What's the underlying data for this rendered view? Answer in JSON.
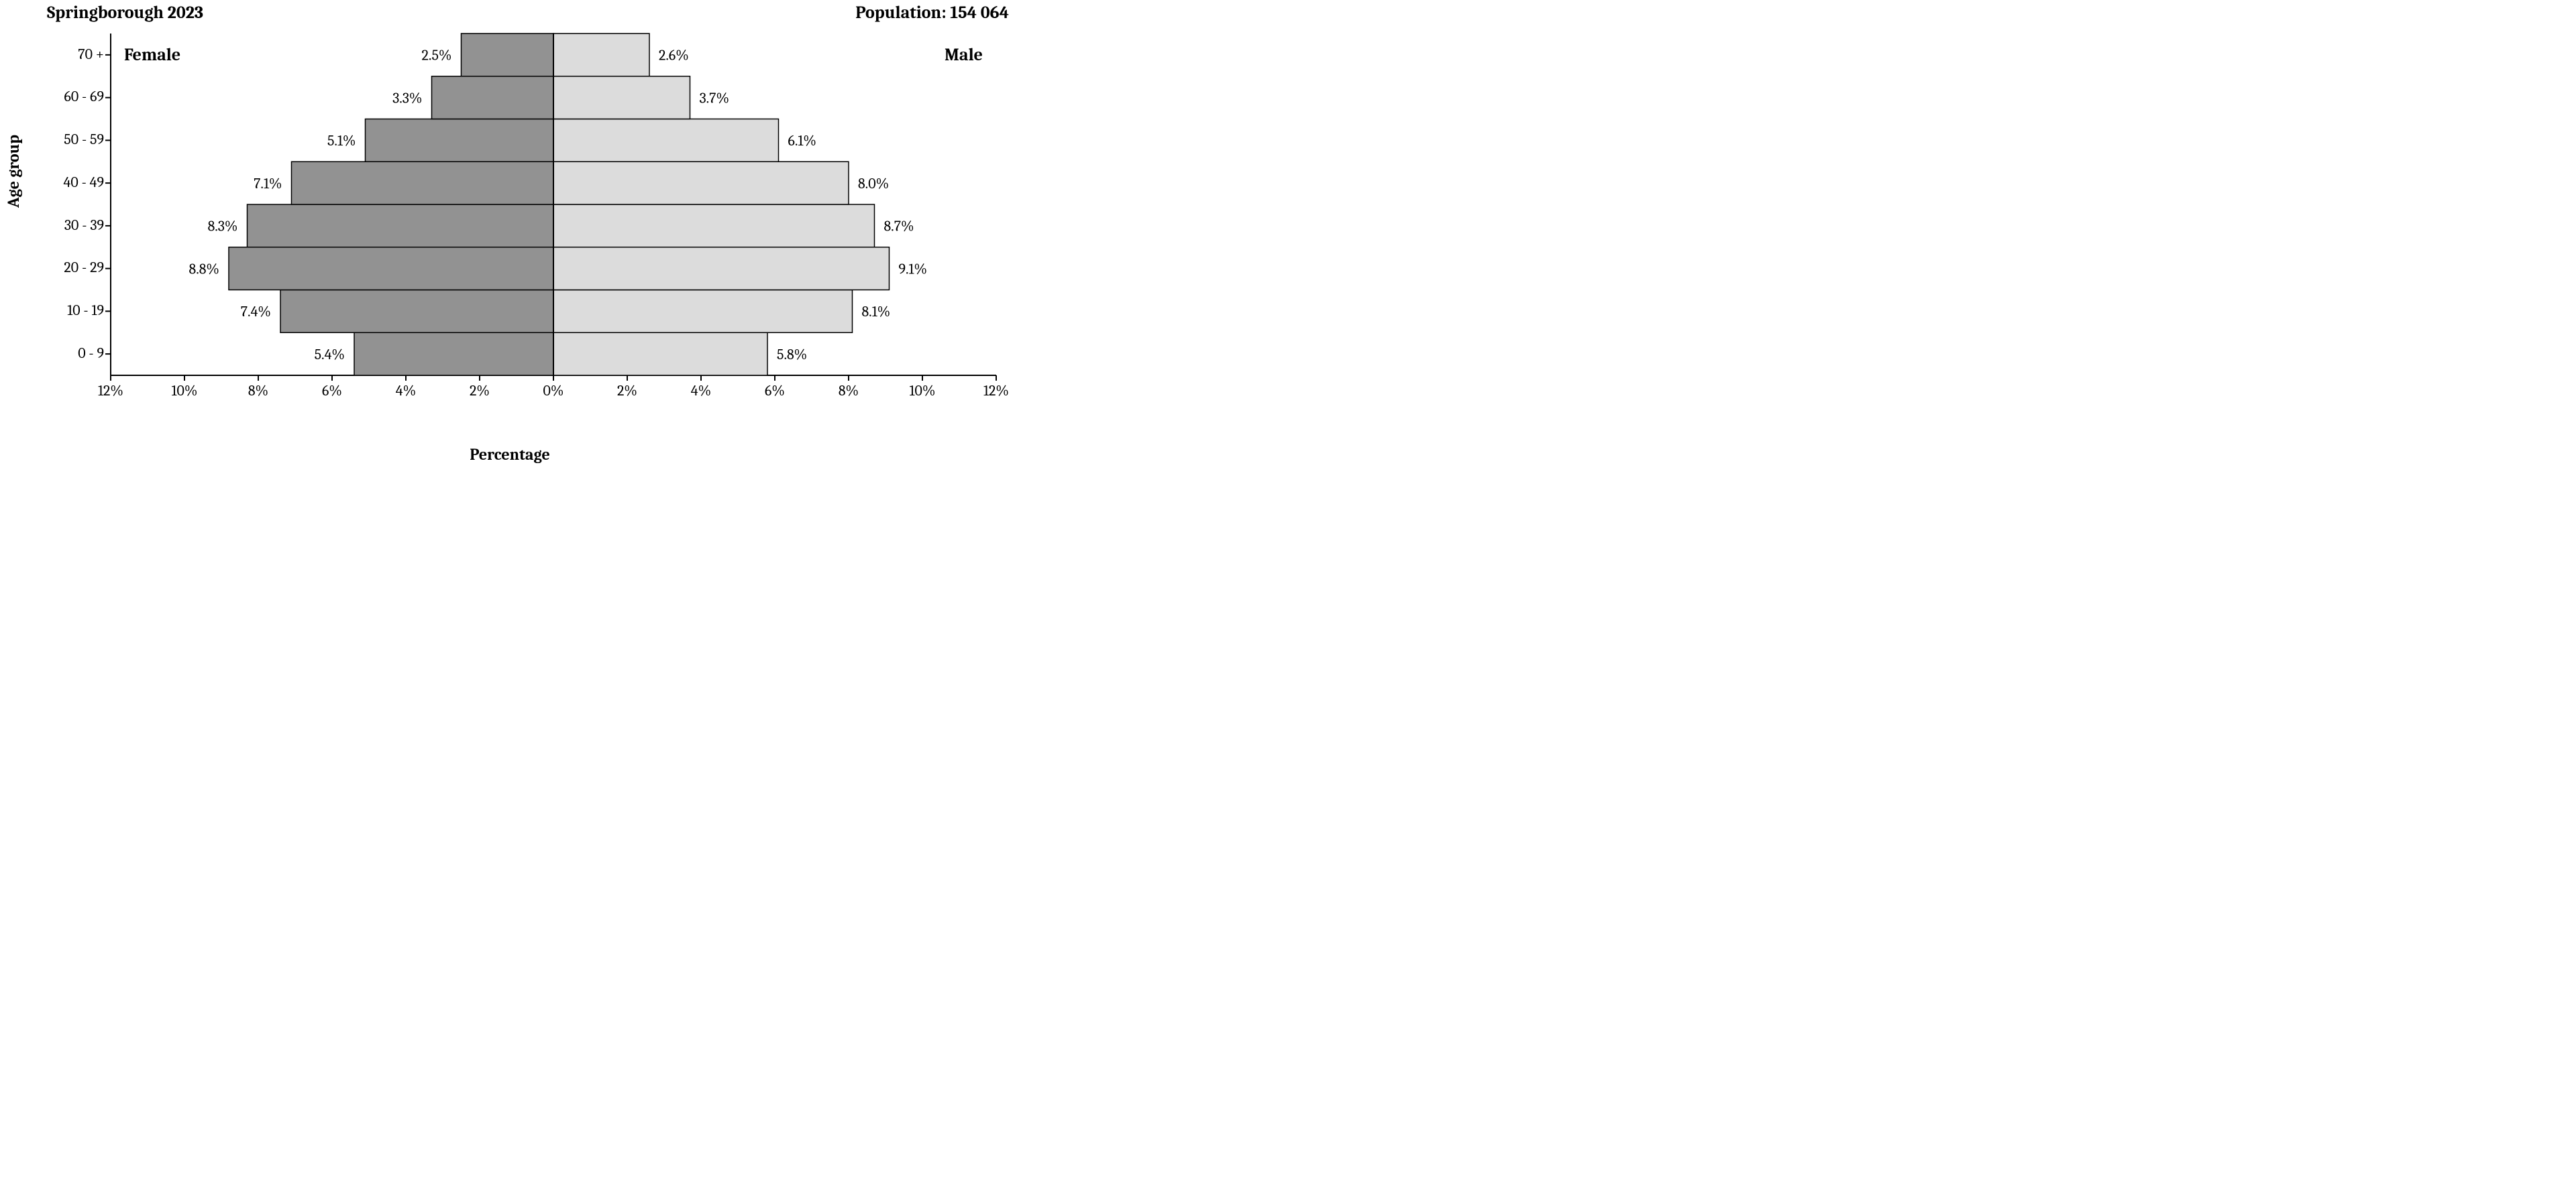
{
  "header": {
    "left": "Springborough 2023",
    "right": "Population: 154 064"
  },
  "axes": {
    "y_title": "Age group",
    "x_title": "Percentage"
  },
  "side_labels": {
    "female": "Female",
    "male": "Male"
  },
  "chart": {
    "type": "population-pyramid",
    "background_color": "#ffffff",
    "axis_color": "#000000",
    "axis_width": 2,
    "bar_border": "#000000",
    "bar_border_w": 1.5,
    "female_fill": "#929292",
    "male_fill": "#dcdcdc",
    "label_color": "#000000",
    "label_fontsize": 22,
    "tick_fontsize": 22,
    "age_fontsize": 22,
    "x_max_pct": 12,
    "x_tick_step": 2,
    "age_labels": [
      "0 - 9",
      "10 - 19",
      "20 - 29",
      "30 - 39",
      "40 - 49",
      "50 - 59",
      "60 - 69",
      "70 +"
    ],
    "female_pct": [
      5.4,
      7.4,
      8.8,
      8.3,
      7.1,
      5.1,
      3.3,
      2.5
    ],
    "male_pct": [
      5.8,
      8.1,
      9.1,
      8.7,
      8.0,
      6.1,
      3.7,
      2.6
    ],
    "female_lbl": [
      "5.4%",
      "7.4%",
      "8.8%",
      "8.3%",
      "7.1%",
      "5.1%",
      "3.3%",
      "2.5%"
    ],
    "male_lbl": [
      "5.8%",
      "8.1%",
      "9.1%",
      "8.7%",
      "8.0%",
      "6.1%",
      "3.7%",
      "2.6%"
    ],
    "x_tick_lbl": [
      "12%",
      "10%",
      "8%",
      "6%",
      "4%",
      "2%",
      "0%",
      "2%",
      "4%",
      "6%",
      "8%",
      "10%",
      "12%"
    ]
  }
}
